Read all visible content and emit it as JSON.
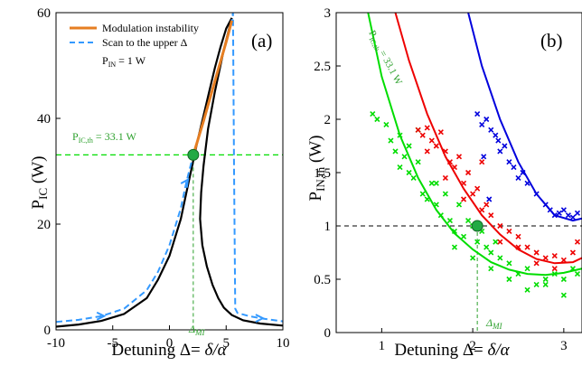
{
  "colors": {
    "orange": "#e67e22",
    "blue_dash": "#3399ff",
    "black": "#000000",
    "green": "#00dd00",
    "green_dark": "#2ca02c",
    "red": "#ee0000",
    "blue": "#0000dd",
    "marker_fill": "#22aa44"
  },
  "chart_data": [
    {
      "type": "line",
      "panel_label": "(a)",
      "xlabel_prefix": "Detuning Δ= ",
      "xlabel_math": "δ/α",
      "ylabel_main": "P",
      "ylabel_sub": "IC",
      "ylabel_unit": " (W)",
      "xlim": [
        -10,
        10
      ],
      "ylim": [
        0,
        60
      ],
      "xticks": [
        -10,
        -5,
        0,
        5,
        10
      ],
      "yticks": [
        0,
        20,
        40,
        60
      ],
      "legend": {
        "items": [
          "Modulation instability",
          "Scan to the upper Δ"
        ],
        "note_main": "P",
        "note_sub": "IN",
        "note_rest": " = 1 W"
      },
      "threshold_label_main": "P",
      "threshold_label_sub": "IC,th",
      "threshold_label_rest": " = 33.1 W",
      "threshold_y": 33.1,
      "delta_mi": 2.1,
      "delta_mi_label": "Δ",
      "delta_mi_label_sub": "MI",
      "series": [
        {
          "name": "Modulation instability",
          "x": [
            2.1,
            3.0,
            4.0,
            5.0,
            5.5
          ],
          "y": [
            33.1,
            39.5,
            47.0,
            54.5,
            58.5
          ]
        },
        {
          "name": "Scan to the upper Δ",
          "x": [
            -10,
            -8,
            -6,
            -4,
            -2,
            -1,
            0,
            1,
            1.5,
            2.1,
            3,
            4,
            5,
            5.5,
            5.6,
            5.7,
            5.8,
            6,
            7,
            8,
            9,
            10
          ],
          "y": [
            1.5,
            1.9,
            2.6,
            4.0,
            7.5,
            11,
            16,
            23,
            28,
            33.1,
            39.5,
            47,
            54.5,
            58.5,
            60,
            30,
            4,
            3.2,
            2.6,
            2.2,
            1.9,
            1.6
          ]
        },
        {
          "x": [
            -10,
            -8,
            -6,
            -4,
            -2,
            -1,
            0,
            1,
            1.5,
            2,
            2.5,
            3,
            3.5,
            4,
            4.5,
            5,
            5.5
          ],
          "y": [
            0.6,
            1.0,
            1.7,
            3.0,
            6.0,
            9.5,
            14,
            21,
            26,
            31,
            36,
            40.5,
            45,
            49.5,
            53.5,
            57,
            59
          ]
        },
        {
          "x": [
            5.5,
            4.8,
            4.0,
            3.4,
            3.0,
            2.8,
            2.7,
            2.9,
            3.3,
            3.8,
            4.3,
            4.8,
            5.5,
            6.5,
            8,
            10
          ],
          "y": [
            59,
            53,
            45,
            38,
            31,
            26,
            21,
            16,
            12,
            8.5,
            6,
            4.2,
            2.8,
            1.8,
            1.2,
            0.8
          ]
        }
      ]
    },
    {
      "type": "scatter",
      "panel_label": "(b)",
      "xlabel_prefix": "Detuning Δ= ",
      "xlabel_math": "δ/α",
      "ylabel_main": "P",
      "ylabel_sub": "IN,th",
      "ylabel_unit": " (W)",
      "xlim": [
        0.5,
        3.2
      ],
      "ylim": [
        0,
        3
      ],
      "xticks": [
        1,
        2,
        3
      ],
      "yticks": [
        0,
        0.5,
        1,
        1.5,
        2,
        2.5,
        3
      ],
      "ytick_labels": [
        "0",
        "0.5",
        "1",
        "1.5",
        "2",
        "2.5",
        "3"
      ],
      "rotated_label_main": "P",
      "rotated_label_sub": "IC,th",
      "rotated_label_rest": " = 33.1 W",
      "delta_mi": 2.05,
      "delta_mi_label": "Δ",
      "delta_mi_label_sub": "MI",
      "hline_y": 1,
      "series": [
        {
          "color": "green",
          "curve_x": [
            0.85,
            1.0,
            1.2,
            1.4,
            1.6,
            1.8,
            2.0,
            2.2,
            2.4,
            2.6,
            2.8,
            3.0,
            3.2
          ],
          "curve_y": [
            3.0,
            2.4,
            1.85,
            1.45,
            1.15,
            0.93,
            0.78,
            0.66,
            0.59,
            0.55,
            0.54,
            0.56,
            0.6
          ],
          "points_x": [
            0.9,
            0.95,
            1.05,
            1.1,
            1.15,
            1.2,
            1.25,
            1.3,
            1.3,
            1.35,
            1.4,
            1.45,
            1.5,
            1.55,
            1.6,
            1.65,
            1.7,
            1.75,
            1.8,
            1.85,
            1.9,
            1.95,
            2.0,
            2.05,
            2.1,
            2.15,
            2.2,
            2.25,
            2.3,
            2.4,
            2.5,
            2.6,
            2.7,
            2.8,
            2.9,
            3.0,
            3.1,
            3.15,
            1.2,
            1.4,
            1.6,
            1.8,
            2.0,
            2.2,
            2.4,
            2.6,
            2.8,
            3.0
          ],
          "points_y": [
            2.05,
            2.0,
            1.95,
            1.8,
            1.7,
            1.55,
            1.65,
            1.5,
            1.75,
            1.45,
            1.6,
            1.3,
            1.25,
            1.4,
            1.2,
            1.1,
            1.3,
            1.05,
            0.95,
            1.2,
            0.9,
            1.05,
            1.0,
            0.85,
            0.95,
            0.8,
            0.75,
            0.85,
            0.7,
            0.65,
            0.55,
            0.6,
            0.45,
            0.5,
            0.55,
            0.5,
            0.6,
            0.55,
            1.85,
            1.9,
            1.4,
            0.8,
            0.7,
            0.6,
            0.5,
            0.4,
            0.45,
            0.35
          ]
        },
        {
          "color": "red",
          "curve_x": [
            1.15,
            1.3,
            1.5,
            1.7,
            1.9,
            2.1,
            2.3,
            2.5,
            2.7,
            2.9,
            3.1,
            3.2
          ],
          "curve_y": [
            3.0,
            2.55,
            2.05,
            1.65,
            1.35,
            1.1,
            0.92,
            0.78,
            0.69,
            0.65,
            0.66,
            0.7
          ],
          "points_x": [
            1.4,
            1.45,
            1.5,
            1.55,
            1.6,
            1.65,
            1.7,
            1.75,
            1.8,
            1.85,
            1.9,
            1.95,
            2.0,
            2.05,
            2.1,
            2.15,
            2.2,
            2.3,
            2.4,
            2.5,
            2.6,
            2.7,
            2.8,
            2.9,
            3.0,
            3.1,
            3.15,
            1.5,
            1.7,
            1.9,
            2.1,
            2.3,
            2.5,
            2.7,
            2.9
          ],
          "points_y": [
            1.9,
            1.85,
            1.92,
            1.8,
            1.75,
            1.88,
            1.7,
            1.6,
            1.55,
            1.65,
            1.4,
            1.5,
            1.3,
            1.35,
            1.6,
            1.2,
            1.1,
            1.0,
            0.95,
            0.9,
            0.8,
            0.75,
            0.7,
            0.72,
            0.68,
            0.75,
            0.85,
            1.7,
            1.45,
            1.25,
            1.15,
            0.85,
            0.8,
            0.65,
            0.6
          ]
        },
        {
          "color": "blue",
          "curve_x": [
            1.95,
            2.1,
            2.3,
            2.5,
            2.7,
            2.9,
            3.1,
            3.2
          ],
          "curve_y": [
            3.0,
            2.5,
            2.0,
            1.6,
            1.3,
            1.1,
            1.05,
            1.07
          ],
          "points_x": [
            2.05,
            2.1,
            2.15,
            2.2,
            2.25,
            2.3,
            2.35,
            2.4,
            2.45,
            2.5,
            2.55,
            2.6,
            2.7,
            2.8,
            2.85,
            2.9,
            2.95,
            3.0,
            3.05,
            3.1,
            3.15,
            2.12,
            2.18,
            2.28
          ],
          "points_y": [
            2.05,
            1.95,
            2.0,
            1.9,
            1.85,
            1.7,
            1.75,
            1.6,
            1.55,
            1.45,
            1.5,
            1.4,
            1.3,
            1.2,
            1.15,
            1.1,
            1.12,
            1.15,
            1.1,
            1.08,
            1.12,
            1.65,
            1.25,
            1.8
          ]
        }
      ]
    }
  ]
}
